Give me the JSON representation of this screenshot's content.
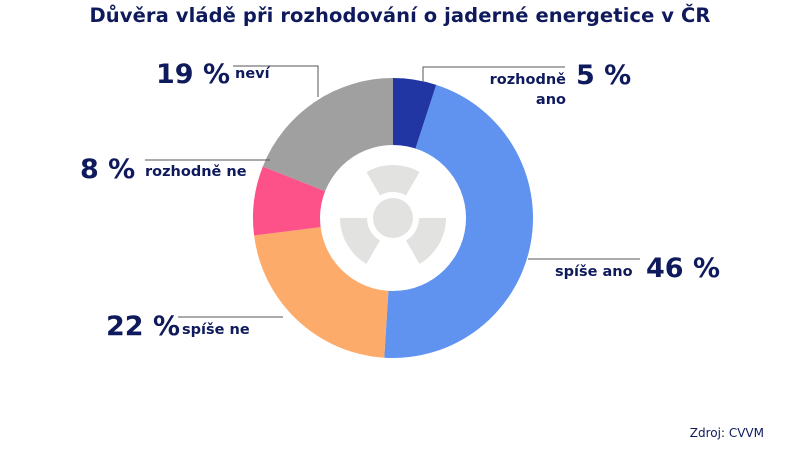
{
  "title": "Důvěra vládě při rozhodování o jaderné energetice v ČR",
  "source": "Zdroj: CVVM",
  "center_icon": "radiation-icon",
  "labels": {
    "rozhodne_ano": {
      "pct": "5 %",
      "label_line1": "rozhodně",
      "label_line2": "ano"
    },
    "spise_ano": {
      "pct": "46 %",
      "label": "spíše ano"
    },
    "spise_ne": {
      "pct": "22 %",
      "label": "spíše ne"
    },
    "rozhodne_ne": {
      "pct": "8 %",
      "label": "rozhodně ne"
    },
    "nevi": {
      "pct": "19 %",
      "label": "neví"
    }
  },
  "chart_data": {
    "type": "pie",
    "variant": "donut",
    "title": "Důvěra vládě při rozhodování o jaderné energetice v ČR",
    "categories": [
      "rozhodně ano",
      "spíše ano",
      "spíše ne",
      "rozhodně ne",
      "neví"
    ],
    "values": [
      5,
      46,
      22,
      8,
      19
    ],
    "unit": "%",
    "colors": [
      "#2236a3",
      "#5f93ef",
      "#fdab6b",
      "#fd5289",
      "#a0a0a0"
    ],
    "start_angle_deg": 0,
    "direction": "clockwise",
    "annotations": [
      "Zdroj: CVVM"
    ],
    "legend": "none (direct labels)"
  }
}
